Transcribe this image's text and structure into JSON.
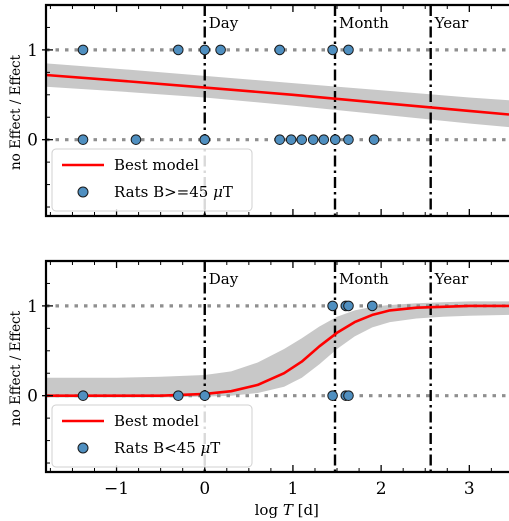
{
  "chart_data": [
    {
      "type": "scatter",
      "ylabel": "no Effect / Effect",
      "xlim": [
        -1.8,
        3.45
      ],
      "ylim": [
        -0.85,
        1.5
      ],
      "y_ticks": [
        0,
        1
      ],
      "y_tick_labels": [
        "0",
        "1"
      ],
      "reference_lines": [
        {
          "label": "Day",
          "x": 0
        },
        {
          "label": "Month",
          "x": 1.477
        },
        {
          "label": "Year",
          "x": 2.562
        }
      ],
      "legend": {
        "placement": "lower-left",
        "entries": [
          "Best model",
          "Rats B>=45 μT"
        ]
      },
      "series": [
        {
          "name": "Best model",
          "kind": "line",
          "color": "#ff0000",
          "x": [
            -1.8,
            -1.0,
            0.0,
            1.0,
            2.0,
            3.0,
            3.45
          ],
          "y": [
            0.72,
            0.66,
            0.58,
            0.5,
            0.41,
            0.32,
            0.28
          ]
        },
        {
          "name": "confidence band",
          "kind": "band",
          "color": "#c8c8c8",
          "x": [
            -1.8,
            -1.0,
            0.0,
            1.0,
            2.0,
            3.0,
            3.45
          ],
          "lower": [
            0.59,
            0.54,
            0.47,
            0.38,
            0.28,
            0.18,
            0.14
          ],
          "upper": [
            0.85,
            0.79,
            0.71,
            0.63,
            0.55,
            0.47,
            0.44
          ]
        },
        {
          "name": "Rats B>=45 μT",
          "kind": "points",
          "color": "#4f8fc0",
          "points": [
            [
              -1.38,
              1
            ],
            [
              -0.3,
              1
            ],
            [
              0.0,
              1
            ],
            [
              0.18,
              1
            ],
            [
              0.85,
              1
            ],
            [
              1.45,
              1
            ],
            [
              1.63,
              1
            ],
            [
              -1.38,
              0
            ],
            [
              -0.78,
              0
            ],
            [
              0.0,
              0
            ],
            [
              0.0,
              0
            ],
            [
              0.85,
              0
            ],
            [
              0.98,
              0
            ],
            [
              1.1,
              0
            ],
            [
              1.23,
              0
            ],
            [
              1.35,
              0
            ],
            [
              1.48,
              0
            ],
            [
              1.63,
              0
            ],
            [
              1.92,
              0
            ]
          ]
        }
      ]
    },
    {
      "type": "scatter",
      "xlabel": "log T [d]",
      "ylabel": "no Effect / Effect",
      "xlim": [
        -1.8,
        3.45
      ],
      "ylim": [
        -0.85,
        1.5
      ],
      "x_ticks": [
        -1,
        0,
        1,
        2,
        3
      ],
      "x_tick_labels": [
        "−1",
        "0",
        "1",
        "2",
        "3"
      ],
      "y_ticks": [
        0,
        1
      ],
      "y_tick_labels": [
        "0",
        "1"
      ],
      "reference_lines": [
        {
          "label": "Day",
          "x": 0
        },
        {
          "label": "Month",
          "x": 1.477
        },
        {
          "label": "Year",
          "x": 2.562
        }
      ],
      "legend": {
        "placement": "lower-left",
        "entries": [
          "Best model",
          "Rats B<45 μT"
        ]
      },
      "series": [
        {
          "name": "Best model",
          "kind": "line",
          "color": "#ff0000",
          "x": [
            -1.8,
            -1.0,
            -0.5,
            0.0,
            0.3,
            0.6,
            0.9,
            1.1,
            1.3,
            1.5,
            1.7,
            1.9,
            2.1,
            2.4,
            2.7,
            3.0,
            3.45
          ],
          "y": [
            0.0,
            0.0,
            0.0,
            0.02,
            0.05,
            0.12,
            0.25,
            0.38,
            0.55,
            0.7,
            0.82,
            0.9,
            0.95,
            0.98,
            0.99,
            1.0,
            1.0
          ]
        },
        {
          "name": "confidence band",
          "kind": "band",
          "color": "#c8c8c8",
          "x": [
            -1.8,
            -1.0,
            -0.5,
            0.0,
            0.3,
            0.6,
            0.9,
            1.1,
            1.3,
            1.5,
            1.7,
            1.9,
            2.1,
            2.4,
            2.7,
            3.0,
            3.45
          ],
          "lower": [
            -0.02,
            -0.02,
            -0.02,
            -0.01,
            0.0,
            0.03,
            0.1,
            0.2,
            0.35,
            0.52,
            0.66,
            0.76,
            0.82,
            0.86,
            0.88,
            0.89,
            0.9
          ],
          "upper": [
            0.2,
            0.2,
            0.21,
            0.23,
            0.27,
            0.37,
            0.52,
            0.64,
            0.77,
            0.88,
            0.95,
            0.99,
            1.01,
            1.03,
            1.04,
            1.05,
            1.05
          ]
        },
        {
          "name": "Rats B<45 μT",
          "kind": "points",
          "color": "#4f8fc0",
          "points": [
            [
              1.45,
              1
            ],
            [
              1.6,
              1
            ],
            [
              1.63,
              1
            ],
            [
              1.9,
              1
            ],
            [
              -1.38,
              0
            ],
            [
              -0.3,
              0
            ],
            [
              0.0,
              0
            ],
            [
              1.45,
              0
            ],
            [
              1.6,
              0
            ],
            [
              1.63,
              0
            ]
          ]
        }
      ]
    }
  ]
}
